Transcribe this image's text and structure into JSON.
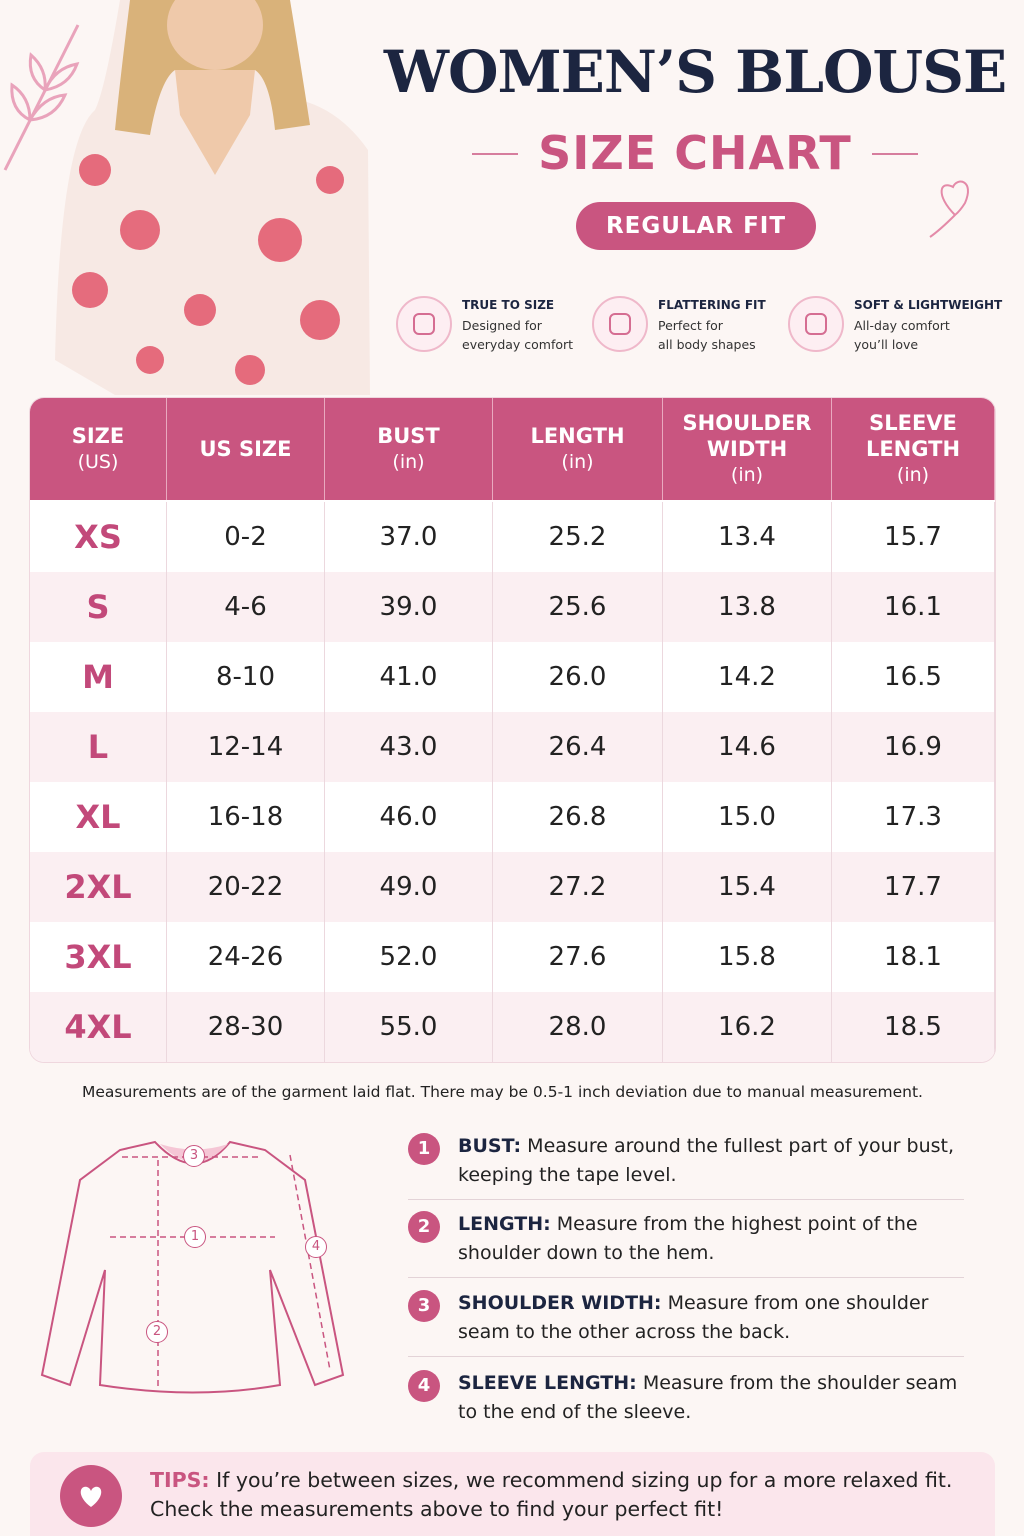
{
  "header": {
    "title": "WOMEN’S BLOUSE",
    "subtitle": "SIZE CHART",
    "badge": "REGULAR FIT"
  },
  "features": [
    {
      "title": "TRUE TO SIZE",
      "lines": [
        "Designed for",
        "everyday comfort"
      ]
    },
    {
      "title": "FLATTERING FIT",
      "lines": [
        "Perfect for",
        "all body shapes"
      ]
    },
    {
      "title": "SOFT & LIGHTWEIGHT",
      "lines": [
        "All-day comfort",
        "you’ll love"
      ]
    }
  ],
  "table": {
    "columns": [
      {
        "label": [
          "SIZE"
        ],
        "unit": "(US)"
      },
      {
        "label": [
          "US SIZE"
        ]
      },
      {
        "label": [
          "BUST"
        ],
        "unit": "(in)"
      },
      {
        "label": [
          "LENGTH"
        ],
        "unit": "(in)"
      },
      {
        "label": [
          "SHOULDER",
          "WIDTH"
        ],
        "unit": "(in)"
      },
      {
        "label": [
          "SLEEVE",
          "LENGTH"
        ],
        "unit": "(in)"
      }
    ],
    "rows": [
      [
        "XS",
        "0-2",
        "37.0",
        "25.2",
        "13.4",
        "15.7"
      ],
      [
        "S",
        "4-6",
        "39.0",
        "25.6",
        "13.8",
        "16.1"
      ],
      [
        "M",
        "8-10",
        "41.0",
        "26.0",
        "14.2",
        "16.5"
      ],
      [
        "L",
        "12-14",
        "43.0",
        "26.4",
        "14.6",
        "16.9"
      ],
      [
        "XL",
        "16-18",
        "46.0",
        "26.8",
        "15.0",
        "17.3"
      ],
      [
        "2XL",
        "20-22",
        "49.0",
        "27.2",
        "15.4",
        "17.7"
      ],
      [
        "3XL",
        "24-26",
        "52.0",
        "27.6",
        "15.8",
        "18.1"
      ],
      [
        "4XL",
        "28-30",
        "55.0",
        "28.0",
        "16.2",
        "18.5"
      ]
    ]
  },
  "note": "Measurements are of the garment laid flat. There may be 0.5-1 inch deviation due to manual measurement.",
  "measurements": [
    {
      "number": "1",
      "title": "BUST:",
      "text": "Measure around the fullest part of your bust, keeping the tape level."
    },
    {
      "number": "2",
      "title": "LENGTH:",
      "text": "Measure from the highest point of the shoulder down to the hem."
    },
    {
      "number": "3",
      "title": "SHOULDER WIDTH:",
      "text": "Measure from one shoulder seam to the other across the back."
    },
    {
      "number": "4",
      "title": "SLEEVE LENGTH:",
      "text": "Measure from the shoulder seam to the end of the sleeve."
    }
  ],
  "tips": {
    "label": "TIPS:",
    "lines": [
      "If you’re between sizes, we recommend sizing up for a more relaxed fit.",
      "Check the measurements above to find your perfect fit!"
    ]
  }
}
